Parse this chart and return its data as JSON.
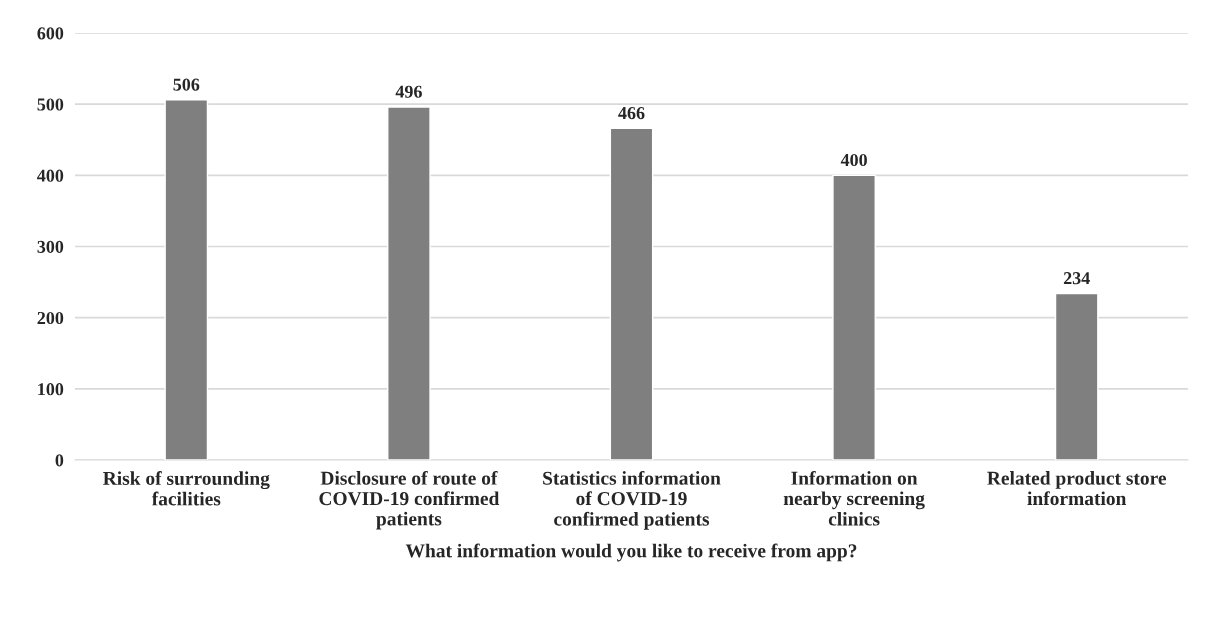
{
  "chart_data": {
    "type": "bar",
    "categories": [
      "Risk of surrounding\nfacilities",
      "Disclosure of route of\nCOVID-19 confirmed\npatients",
      "Statistics information\nof COVID-19\nconfirmed patients",
      "Information on\nnearby screening\nclinics",
      "Related product store\ninformation"
    ],
    "values": [
      506,
      496,
      466,
      400,
      234
    ],
    "color": "#7f7f7f",
    "xlabel": "What information would you like to receive from app?",
    "ylim": [
      0,
      600
    ],
    "yticks": [
      0,
      100,
      200,
      300,
      400,
      500,
      600
    ],
    "grid": "y",
    "data_labels": true
  }
}
